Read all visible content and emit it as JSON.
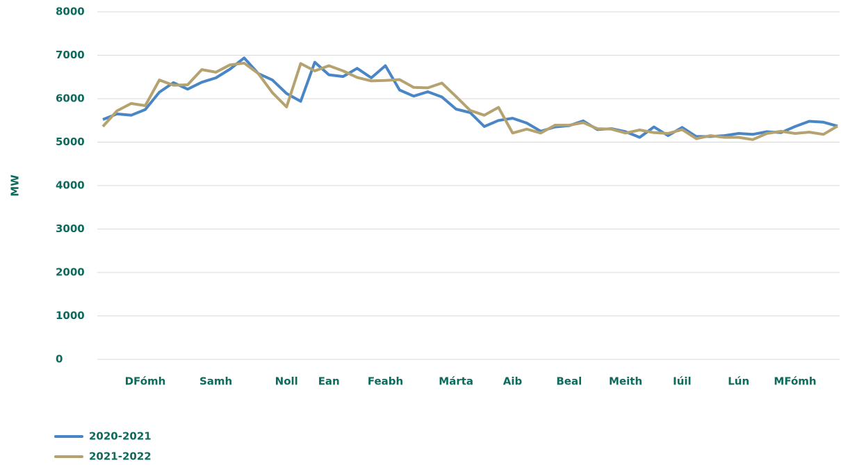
{
  "chart_data": {
    "type": "line",
    "ylabel": "MW",
    "categories": [
      null,
      null,
      null,
      "DFómh",
      null,
      null,
      null,
      null,
      "Samh",
      null,
      null,
      null,
      null,
      "Noll",
      null,
      null,
      "Ean",
      null,
      null,
      null,
      "Feabh",
      null,
      null,
      null,
      null,
      "Márta",
      null,
      null,
      null,
      "Aib",
      null,
      null,
      null,
      "Beal",
      null,
      null,
      null,
      "Meith",
      null,
      null,
      null,
      "Iúil",
      null,
      null,
      null,
      "Lún",
      null,
      null,
      null,
      "MFómh",
      null,
      null,
      null
    ],
    "series": [
      {
        "name": "2020-2021",
        "color": "#4a86c5",
        "values": [
          5520,
          5650,
          5620,
          5750,
          6150,
          6370,
          6220,
          6380,
          6480,
          6680,
          6940,
          6580,
          6430,
          6120,
          5940,
          6840,
          6550,
          6510,
          6700,
          6480,
          6760,
          6200,
          6060,
          6160,
          6040,
          5760,
          5680,
          5360,
          5500,
          5550,
          5440,
          5250,
          5350,
          5380,
          5490,
          5290,
          5310,
          5240,
          5110,
          5350,
          5150,
          5340,
          5130,
          5130,
          5150,
          5200,
          5180,
          5240,
          5220,
          5360,
          5480,
          5460,
          5370
        ]
      },
      {
        "name": "2021-2022",
        "color": "#b5a36f",
        "values": [
          5360,
          5720,
          5890,
          5840,
          6430,
          6310,
          6320,
          6670,
          6610,
          6780,
          6820,
          6580,
          6140,
          5810,
          6810,
          6640,
          6760,
          6640,
          6490,
          6410,
          6420,
          6440,
          6260,
          6250,
          6360,
          6050,
          5730,
          5620,
          5800,
          5210,
          5300,
          5210,
          5390,
          5390,
          5450,
          5310,
          5300,
          5210,
          5280,
          5220,
          5200,
          5290,
          5080,
          5150,
          5110,
          5110,
          5060,
          5200,
          5250,
          5200,
          5230,
          5180,
          5370
        ]
      }
    ],
    "ylim": [
      0,
      8000
    ],
    "yticks": [
      0,
      1000,
      2000,
      3000,
      4000,
      5000,
      6000,
      7000,
      8000
    ],
    "grid": true,
    "legend": "bottom-left"
  }
}
